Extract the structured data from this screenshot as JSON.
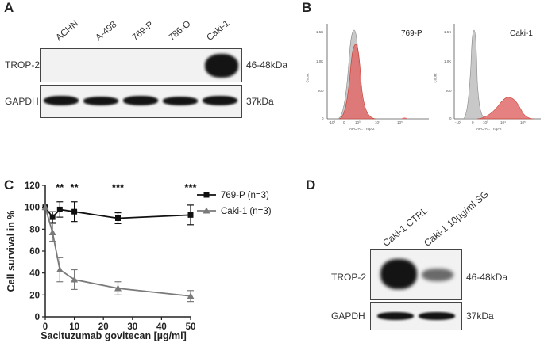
{
  "panels": {
    "A": {
      "letter": "A",
      "lanes": [
        "ACHN",
        "A-498",
        "769-P",
        "786-O",
        "Caki-1"
      ],
      "row1_label": "TROP-2",
      "row1_size": "46-48kDa",
      "row2_label": "GAPDH",
      "row2_size": "37kDa"
    },
    "B": {
      "letter": "B",
      "left_title": "769-P",
      "right_title": "Caki-1",
      "y_axis_label": "Count",
      "x_axis_label": "APC-A :: Trop-2",
      "y_ticks": [
        "1.5K",
        "1.0K",
        "500",
        "0"
      ],
      "x_ticks": [
        "-10³",
        "0",
        "10³",
        "10⁴",
        "10⁵"
      ]
    },
    "C": {
      "letter": "C",
      "significance": [
        {
          "x": 5,
          "label": "**"
        },
        {
          "x": 10,
          "label": "**"
        },
        {
          "x": 25,
          "label": "***"
        },
        {
          "x": 50,
          "label": "***"
        }
      ]
    },
    "D": {
      "letter": "D",
      "lanes": [
        "Caki-1 CTRL",
        "Caki-1 10µg/ml SG"
      ],
      "row1_label": "TROP-2",
      "row1_size": "46-48kDa",
      "row2_label": "GAPDH",
      "row2_size": "37kDa"
    }
  },
  "chart_data": {
    "type": "line",
    "title": "",
    "xlabel": "Sacituzumab govitecan [µg/ml]",
    "ylabel": "Cell survival in %",
    "xlim": [
      0,
      50
    ],
    "ylim": [
      0,
      120
    ],
    "x_ticks": [
      0,
      10,
      20,
      30,
      40,
      50
    ],
    "y_ticks": [
      0,
      20,
      40,
      60,
      80,
      100,
      120
    ],
    "legend_position": "top-right",
    "series": [
      {
        "name": "769-P (n=3)",
        "color": "#111111",
        "marker": "square",
        "x": [
          0,
          2.5,
          5,
          10,
          25,
          50
        ],
        "y": [
          100,
          91,
          98,
          96,
          90,
          93
        ],
        "err": [
          0,
          5,
          7,
          9,
          5,
          9
        ]
      },
      {
        "name": "Caki-1 (n=3)",
        "color": "#7a7a7a",
        "marker": "triangle",
        "x": [
          0,
          2.5,
          5,
          10,
          25,
          50
        ],
        "y": [
          100,
          77,
          43,
          34,
          26,
          19
        ],
        "err": [
          0,
          8,
          11,
          9,
          6,
          5
        ]
      }
    ]
  }
}
